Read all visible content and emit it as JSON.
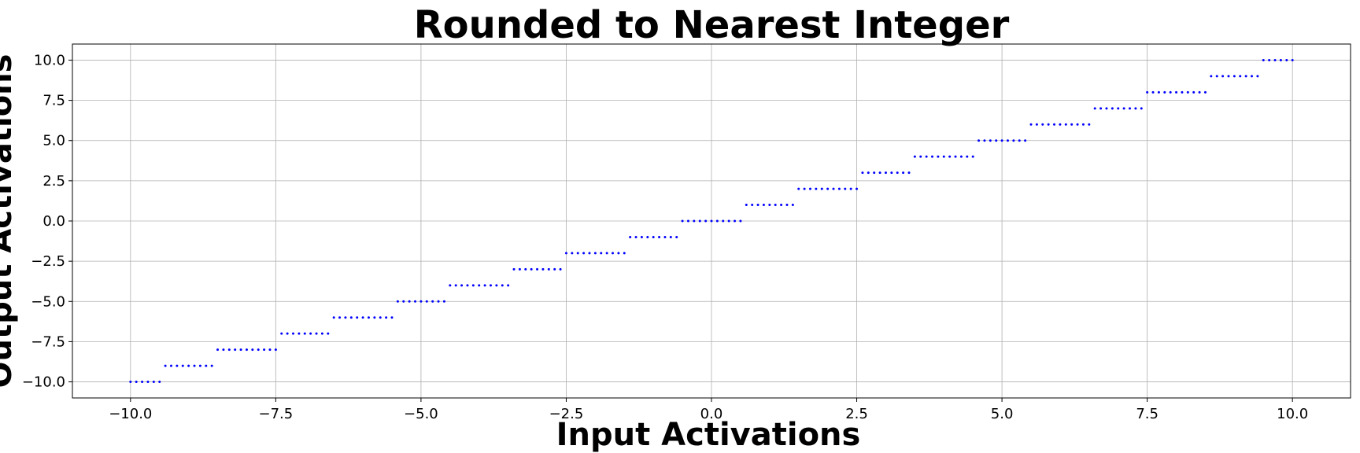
{
  "chart_data": {
    "type": "scatter",
    "title": "Rounded to Nearest Integer",
    "xlabel": "Input Activations",
    "ylabel": "Output Activations",
    "xlim": [
      -11,
      11
    ],
    "ylim": [
      -11,
      11
    ],
    "x_ticks": [
      -10.0,
      -7.5,
      -5.0,
      -2.5,
      0.0,
      2.5,
      5.0,
      7.5,
      10.0
    ],
    "y_ticks": [
      -10.0,
      -7.5,
      -5.0,
      -2.5,
      0.0,
      2.5,
      5.0,
      7.5,
      10.0
    ],
    "x_tick_labels": [
      "−10.0",
      "−7.5",
      "−5.0",
      "−2.5",
      "0.0",
      "2.5",
      "5.0",
      "7.5",
      "10.0"
    ],
    "y_tick_labels": [
      "−10.0",
      "−7.5",
      "−5.0",
      "−2.5",
      "0.0",
      "2.5",
      "5.0",
      "7.5",
      "10.0"
    ],
    "grid": true,
    "point_color": "#0000ff",
    "series": [
      {
        "x_range": [
          -10,
          10
        ],
        "x_step": 0.1,
        "rule": "y = round(x)"
      }
    ]
  }
}
